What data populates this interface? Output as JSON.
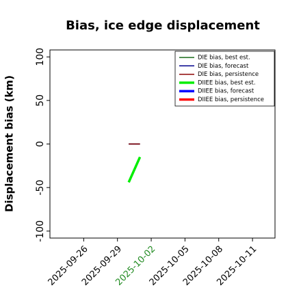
{
  "chart_data": {
    "type": "line",
    "title": "Bias, ice edge displacement",
    "y_label": "Displacement bias (km)",
    "xlim": [
      "2025-09-23",
      "2025-10-13"
    ],
    "xticks": [
      "2025-09-26",
      "2025-09-29",
      "2025-10-02",
      "2025-10-05",
      "2025-10-08",
      "2025-10-11"
    ],
    "xtick_label_colors": [
      "#000000",
      "#000000",
      "#228b22",
      "#000000",
      "#000000",
      "#000000"
    ],
    "ylim": [
      -108,
      108
    ],
    "yticks": [
      100,
      50,
      0,
      -50,
      -100
    ],
    "legend": "upper right",
    "series": [
      {
        "name": "DIE bias, best est.",
        "color": "#1a6b1a",
        "linewidth": 1.5,
        "x": [
          "2025-09-30",
          "2025-10-01"
        ],
        "values": [
          0,
          0
        ]
      },
      {
        "name": "DIE bias, forecast",
        "color": "#00008b",
        "linewidth": 1.5,
        "x": [
          "2025-09-30",
          "2025-10-01"
        ],
        "values": [
          0,
          0
        ]
      },
      {
        "name": "DIE bias, persistence",
        "color": "#8b0000",
        "linewidth": 1.5,
        "x": [
          "2025-09-30",
          "2025-10-01"
        ],
        "values": [
          0,
          0
        ]
      },
      {
        "name": "DIIEE bias, best est.",
        "color": "#00ee00",
        "linewidth": 3.5,
        "x": [
          "2025-09-30",
          "2025-10-01"
        ],
        "values": [
          -44,
          -15
        ]
      },
      {
        "name": "DIIEE bias, forecast",
        "color": "#0000ff",
        "linewidth": 3.5,
        "x": [],
        "values": []
      },
      {
        "name": "DIIEE bias, persistence",
        "color": "#ff0000",
        "linewidth": 3.5,
        "x": [],
        "values": []
      }
    ]
  }
}
